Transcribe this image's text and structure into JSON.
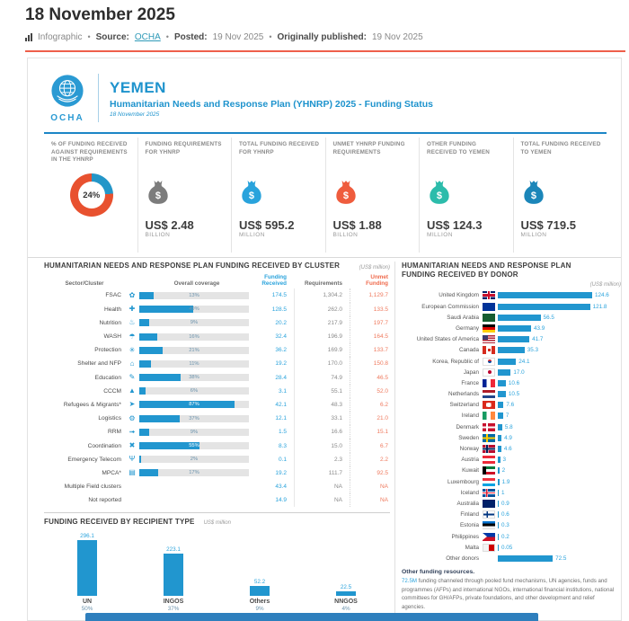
{
  "header": {
    "title": "18 November 2025",
    "meta": {
      "content_type": "Infographic",
      "source_label": "Source:",
      "source": "OCHA",
      "posted_label": "Posted:",
      "posted": "19 Nov 2025",
      "published_label": "Originally published:",
      "published": "19 Nov 2025"
    }
  },
  "brand": {
    "org": "OCHA",
    "country": "YEMEN",
    "subtitle": "Humanitarian Needs and Response Plan (YHNRP) 2025 - Funding Status",
    "date": "18 November 2025",
    "accent_color": "#1e93cd"
  },
  "stats": [
    {
      "id": "pct-funded",
      "label": "% OF FUNDING RECEIVED AGAINST REQUIREMENTS IN THE YHNRP",
      "display": "donut",
      "value": "24%",
      "pct": 24,
      "donut_colors": {
        "received": "#2496c8",
        "unmet": "#e8512f"
      }
    },
    {
      "id": "requirements",
      "label": "FUNDING REQUIREMENTS FOR YHNRP",
      "display": "money-bag",
      "icon_color": "#7c7c7c",
      "value": "US$ 2.48",
      "unit": "BILLION"
    },
    {
      "id": "received-yhnrp",
      "label": "TOTAL FUNDING RECEIVED FOR YHNRP",
      "display": "money-bag",
      "icon_color": "#29a3dc",
      "value": "US$ 595.2",
      "unit": "MILLION"
    },
    {
      "id": "unmet",
      "label": "UNMET YHNRP FUNDING REQUIREMENTS",
      "display": "money-bag",
      "icon_color": "#ef5c3d",
      "value": "US$ 1.88",
      "unit": "BILLION"
    },
    {
      "id": "other-funding",
      "label": "OTHER FUNDING RECEIVED TO YEMEN",
      "display": "money-bag",
      "icon_color": "#2cbcab",
      "value": "US$ 124.3",
      "unit": "MILLION"
    },
    {
      "id": "total-yemen",
      "label": "TOTAL FUNDING RECEIVED TO YEMEN",
      "display": "money-bag",
      "icon_color": "#1b86b9",
      "value": "US$ 719.5",
      "unit": "MILLION"
    }
  ],
  "chart_data": [
    {
      "id": "cluster-funding",
      "type": "bar",
      "title": "HUMANITARIAN NEEDS AND RESPONSE PLAN FUNDING RECEIVED BY CLUSTER",
      "unit_note": "(US$ million)",
      "legend_position": "top",
      "columns": {
        "cluster": "Sector/Cluster",
        "coverage": "Overall coverage",
        "received": "Funding Received",
        "requirements": "Requirements",
        "unmet": "Unmet Funding"
      },
      "rows": [
        {
          "cluster": "FSAC",
          "icon": "wheat-icon",
          "pct": 13,
          "pct_label": "13%",
          "received": "174.5",
          "requirements": "1,304.2",
          "unmet": "1,129.7"
        },
        {
          "cluster": "Health",
          "icon": "health-icon",
          "pct": 49,
          "pct_label": "49%",
          "received": "128.5",
          "requirements": "262.0",
          "unmet": "133.5"
        },
        {
          "cluster": "Nutrition",
          "icon": "nutrition-icon",
          "pct": 9,
          "pct_label": "9%",
          "received": "20.2",
          "requirements": "217.9",
          "unmet": "197.7"
        },
        {
          "cluster": "WASH",
          "icon": "water-icon",
          "pct": 16,
          "pct_label": "16%",
          "received": "32.4",
          "requirements": "196.9",
          "unmet": "164.5"
        },
        {
          "cluster": "Protection",
          "icon": "protection-icon",
          "pct": 21,
          "pct_label": "21%",
          "received": "36.2",
          "requirements": "169.9",
          "unmet": "133.7"
        },
        {
          "cluster": "Shelter and NFP",
          "icon": "shelter-icon",
          "pct": 11,
          "pct_label": "11%",
          "received": "19.2",
          "requirements": "170.0",
          "unmet": "150.8"
        },
        {
          "cluster": "Education",
          "icon": "education-icon",
          "pct": 38,
          "pct_label": "38%",
          "received": "28.4",
          "requirements": "74.9",
          "unmet": "46.5"
        },
        {
          "cluster": "CCCM",
          "icon": "camp-icon",
          "pct": 6,
          "pct_label": "6%",
          "received": "3.1",
          "requirements": "55.1",
          "unmet": "52.0"
        },
        {
          "cluster": "Refugees & Migrants*",
          "icon": "refugees-icon",
          "pct": 87,
          "pct_label": "87%",
          "received": "42.1",
          "requirements": "48.3",
          "unmet": "6.2"
        },
        {
          "cluster": "Logistics",
          "icon": "logistics-icon",
          "pct": 37,
          "pct_label": "37%",
          "received": "12.1",
          "requirements": "33.1",
          "unmet": "21.0"
        },
        {
          "cluster": "RRM",
          "icon": "rapid-response-icon",
          "pct": 9,
          "pct_label": "9%",
          "received": "1.5",
          "requirements": "16.6",
          "unmet": "15.1"
        },
        {
          "cluster": "Coordination",
          "icon": "coordination-icon",
          "pct": 55,
          "pct_label": "55%",
          "received": "8.3",
          "requirements": "15.0",
          "unmet": "6.7"
        },
        {
          "cluster": "Emergency Telecom",
          "icon": "telecom-icon",
          "pct": 2,
          "pct_label": "2%",
          "received": "0.1",
          "requirements": "2.3",
          "unmet": "2.2"
        },
        {
          "cluster": "MPCA*",
          "icon": "cash-icon",
          "pct": 17,
          "pct_label": "17%",
          "received": "19.2",
          "requirements": "111.7",
          "unmet": "92.5"
        },
        {
          "cluster": "Multiple Field clusters",
          "icon": null,
          "pct": null,
          "pct_label": "",
          "received": "43.4",
          "requirements": "NA",
          "unmet": "NA"
        },
        {
          "cluster": "Not reported",
          "icon": null,
          "pct": null,
          "pct_label": "",
          "received": "14.9",
          "requirements": "NA",
          "unmet": "NA"
        }
      ]
    },
    {
      "id": "donor-funding",
      "type": "bar",
      "title": "HUMANITARIAN NEEDS AND RESPONSE PLAN FUNDING RECEIVED BY DONOR",
      "unit_note": "(US$ million)",
      "max_value": 124.6,
      "donors": [
        {
          "name": "United Kingdom",
          "flag": "gb",
          "value": 124.6,
          "label": "124.6"
        },
        {
          "name": "European Commission",
          "flag": "eu",
          "value": 121.8,
          "label": "121.8"
        },
        {
          "name": "Saudi Arabia",
          "flag": "sa",
          "value": 56.5,
          "label": "56.5"
        },
        {
          "name": "Germany",
          "flag": "de",
          "value": 43.9,
          "label": "43.9"
        },
        {
          "name": "United States of America",
          "flag": "us",
          "value": 41.7,
          "label": "41.7"
        },
        {
          "name": "Canada",
          "flag": "ca",
          "value": 35.3,
          "label": "35.3"
        },
        {
          "name": "Korea, Republic of",
          "flag": "kr",
          "value": 24.1,
          "label": "24.1"
        },
        {
          "name": "Japan",
          "flag": "jp",
          "value": 17.0,
          "label": "17.0"
        },
        {
          "name": "France",
          "flag": "fr",
          "value": 10.6,
          "label": "10.6"
        },
        {
          "name": "Netherlands",
          "flag": "nl",
          "value": 10.5,
          "label": "10.5"
        },
        {
          "name": "Switzerland",
          "flag": "ch",
          "value": 7.6,
          "label": "7.6"
        },
        {
          "name": "Ireland",
          "flag": "ie",
          "value": 7.0,
          "label": "7"
        },
        {
          "name": "Denmark",
          "flag": "dk",
          "value": 5.8,
          "label": "5.8"
        },
        {
          "name": "Sweden",
          "flag": "se",
          "value": 4.9,
          "label": "4.9"
        },
        {
          "name": "Norway",
          "flag": "no",
          "value": 4.6,
          "label": "4.6"
        },
        {
          "name": "Austria",
          "flag": "at",
          "value": 3.0,
          "label": "3"
        },
        {
          "name": "Kuwait",
          "flag": "kw",
          "value": 2.0,
          "label": "2"
        },
        {
          "name": "Luxembourg",
          "flag": "lu",
          "value": 1.9,
          "label": "1.9"
        },
        {
          "name": "Iceland",
          "flag": "is",
          "value": 1.0,
          "label": "1"
        },
        {
          "name": "Australia",
          "flag": "au",
          "value": 0.9,
          "label": "0.9"
        },
        {
          "name": "Finland",
          "flag": "fi",
          "value": 0.6,
          "label": "0.6"
        },
        {
          "name": "Estonia",
          "flag": "ee",
          "value": 0.3,
          "label": "0.3"
        },
        {
          "name": "Philippines",
          "flag": "ph",
          "value": 0.2,
          "label": "0.2"
        },
        {
          "name": "Malta",
          "flag": "mt",
          "value": 0.05,
          "label": "0.05"
        },
        {
          "name": "Other donors",
          "flag": null,
          "value": 72.5,
          "label": "72.5"
        }
      ]
    },
    {
      "id": "recipient-type",
      "type": "bar",
      "title": "FUNDING RECEIVED BY RECIPIENT TYPE",
      "unit_note": "US$ million",
      "categories": [
        "UN",
        "INGOS",
        "Others",
        "NNGOS"
      ],
      "values": [
        296.1,
        223.1,
        52.2,
        22.5
      ],
      "value_labels": [
        "296.1",
        "223.1",
        "52.2",
        "22.5"
      ],
      "share_labels": [
        "50%",
        "37%",
        "9%",
        "4%"
      ],
      "ylim": [
        0,
        300
      ]
    }
  ],
  "footnote": {
    "title": "Other funding resources.",
    "lead": "72.5M",
    "text": " funding channeled through pooled fund mechanisms, UN agencies, funds and programmes (AFPs) and international NGOs, international financial institutions, national committees for GH/AFPs, private foundations, and other development and relief agencies."
  },
  "colors": {
    "bar_blue": "#2196cf",
    "unmet_red": "#ef7a5e",
    "value_blue": "#2aa3dc",
    "rule_red": "#ee5f4a",
    "rule_blue": "#1c86c6",
    "footer_bar": "#2e7fbd"
  }
}
